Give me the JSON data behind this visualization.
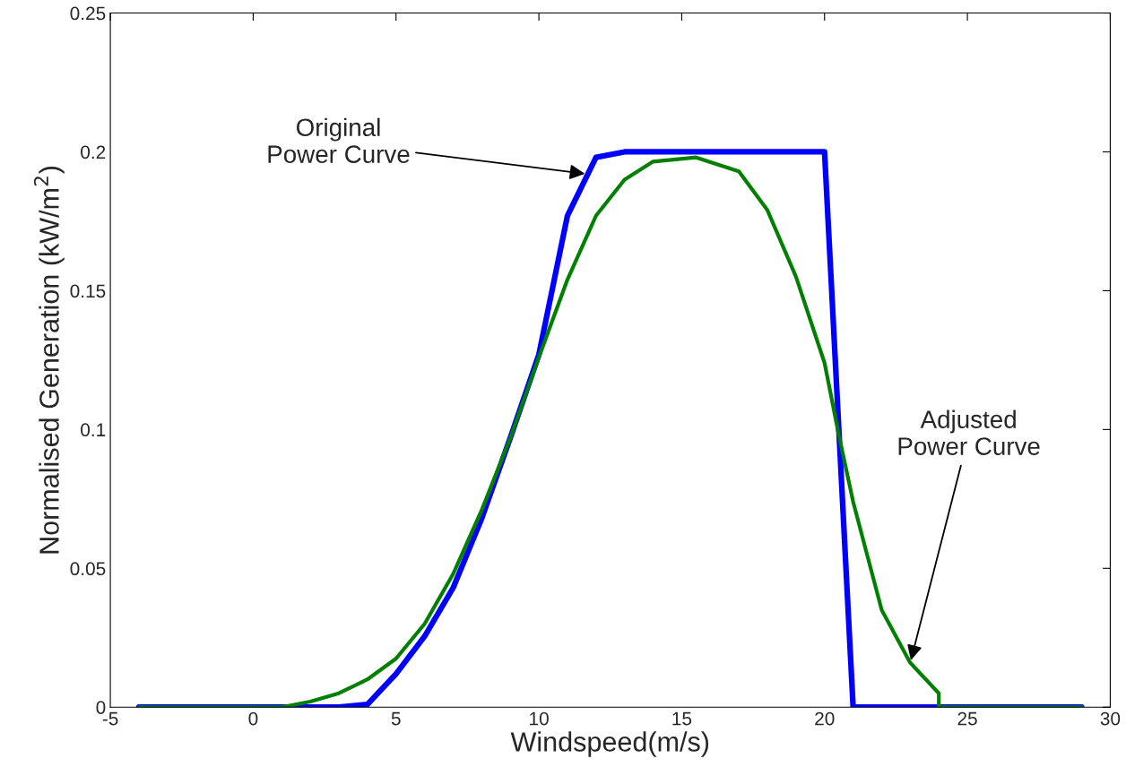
{
  "chart_data": {
    "type": "line",
    "xlabel": "Windspeed(m/s)",
    "ylabel": "Normalised Generation (kW/m$^{2}$)",
    "xlim": [
      -5,
      30
    ],
    "ylim": [
      0,
      0.25
    ],
    "xticks": [
      -5,
      0,
      5,
      10,
      15,
      20,
      25,
      30
    ],
    "yticks": [
      0,
      0.05,
      0.1,
      0.15,
      0.2,
      0.25
    ],
    "grid": false,
    "legend": false,
    "marker": "none",
    "line_style": "solid",
    "series": [
      {
        "color": "#0000ff",
        "x": [
          -4,
          3,
          4,
          5,
          6,
          7,
          8,
          9,
          10,
          11,
          12,
          13,
          20,
          21,
          29
        ],
        "values": [
          0,
          0,
          0.001,
          0.012,
          0.0255,
          0.043,
          0.068,
          0.097,
          0.127,
          0.177,
          0.198,
          0.2,
          0.2,
          0,
          0
        ]
      },
      {
        "color": "#008000",
        "x": [
          -4,
          1,
          2,
          3,
          4,
          5,
          6,
          7,
          8,
          9,
          10,
          11,
          12,
          13,
          14,
          15.5,
          17,
          18,
          19,
          20,
          20.5,
          21,
          22,
          23,
          24,
          24,
          29
        ],
        "values": [
          0,
          0,
          0.002,
          0.005,
          0.01,
          0.0175,
          0.03,
          0.048,
          0.071,
          0.097,
          0.126,
          0.154,
          0.177,
          0.19,
          0.1965,
          0.198,
          0.193,
          0.179,
          0.155,
          0.124,
          0.098,
          0.074,
          0.035,
          0.016,
          0.005,
          0,
          0
        ]
      }
    ],
    "annotations": [
      {
        "text": "Original\nPower Curve",
        "x": 11.7,
        "y": 0.192
      },
      {
        "text": "Adjusted\nPower Curve",
        "x": 23,
        "y": 0.016
      }
    ]
  }
}
